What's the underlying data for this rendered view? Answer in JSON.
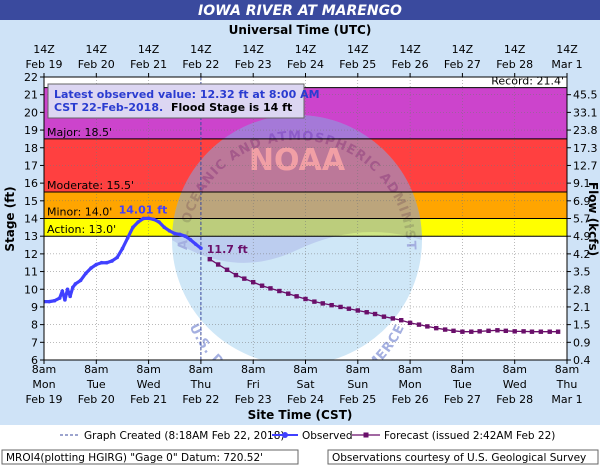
{
  "page": {
    "title": "IOWA RIVER AT MARENGO",
    "top_axis_title": "Universal Time (UTC)",
    "bottom_axis_title": "Site Time (CST)",
    "left_axis_title": "Stage (ft)",
    "right_axis_title": "Flow (kcfs)",
    "info_line1": "Latest observed value: 12.32 ft at 8:00 AM",
    "info_line2a": "CST 22-Feb-2018.",
    "info_line2b": "Flood Stage is 14 ft",
    "legend_graph_created": "Graph Created (8:18AM Feb 22, 2018)",
    "legend_observed": "Observed",
    "legend_forecast": "Forecast (issued 2:42AM Feb 22)",
    "footer_left": "MROI4(plotting HGIRG) \"Gage 0\" Datum: 720.52'",
    "footer_right": "Observations courtesy of U.S. Geological Survey",
    "watermark_top": "NATIONAL OCEANIC AND ATMOSPHERIC ADMINISTRATION",
    "watermark_bottom": "U.S. DEPARTMENT OF COMMERCE",
    "watermark_logo": "NOAA"
  },
  "chart_data": {
    "type": "line",
    "title": "IOWA RIVER AT MARENGO",
    "xlabel": "Site Time (CST)",
    "ylabel": "Stage (ft)",
    "y2label": "Flow (kcfs)",
    "top_xlabel": "Universal Time (UTC)",
    "ylim": [
      6,
      22
    ],
    "yticks": [
      6,
      7,
      8,
      9,
      10,
      11,
      12,
      13,
      14,
      15,
      16,
      17,
      18,
      19,
      20,
      21,
      22
    ],
    "x_ticks_bottom": [
      [
        "8am",
        "Mon",
        "Feb 19"
      ],
      [
        "8am",
        "Tue",
        "Feb 20"
      ],
      [
        "8am",
        "Wed",
        "Feb 21"
      ],
      [
        "8am",
        "Thu",
        "Feb 22"
      ],
      [
        "8am",
        "Fri",
        "Feb 23"
      ],
      [
        "8am",
        "Sat",
        "Feb 24"
      ],
      [
        "8am",
        "Sun",
        "Feb 25"
      ],
      [
        "8am",
        "Mon",
        "Feb 26"
      ],
      [
        "8am",
        "Tue",
        "Feb 27"
      ],
      [
        "8am",
        "Wed",
        "Feb 28"
      ],
      [
        "8am",
        "Thu",
        "Mar 1"
      ]
    ],
    "x_ticks_top": [
      [
        "14Z",
        "Feb 19"
      ],
      [
        "14Z",
        "Feb 20"
      ],
      [
        "14Z",
        "Feb 21"
      ],
      [
        "14Z",
        "Feb 22"
      ],
      [
        "14Z",
        "Feb 23"
      ],
      [
        "14Z",
        "Feb 24"
      ],
      [
        "14Z",
        "Feb 25"
      ],
      [
        "14Z",
        "Feb 26"
      ],
      [
        "14Z",
        "Feb 27"
      ],
      [
        "14Z",
        "Feb 28"
      ],
      [
        "14Z",
        "Mar 1"
      ]
    ],
    "flow_ticks": [
      {
        "stage": 6,
        "label": "0.4"
      },
      {
        "stage": 7,
        "label": "0.9"
      },
      {
        "stage": 8,
        "label": "1.5"
      },
      {
        "stage": 9,
        "label": "2.1"
      },
      {
        "stage": 10,
        "label": "2.8"
      },
      {
        "stage": 11,
        "label": "3.5"
      },
      {
        "stage": 12,
        "label": "4.2"
      },
      {
        "stage": 13,
        "label": "4.9"
      },
      {
        "stage": 14,
        "label": "5.7"
      },
      {
        "stage": 15,
        "label": "6.9"
      },
      {
        "stage": 16,
        "label": "9.1"
      },
      {
        "stage": 17,
        "label": "12.7"
      },
      {
        "stage": 18,
        "label": "17.3"
      },
      {
        "stage": 19,
        "label": "23.8"
      },
      {
        "stage": 20,
        "label": "33.1"
      },
      {
        "stage": 21,
        "label": "45.5"
      }
    ],
    "bands": [
      {
        "name": "Action",
        "label": "Action: 13.0'",
        "from": 13,
        "to": 14,
        "color": "#ffff00"
      },
      {
        "name": "Minor",
        "label": "Minor: 14.0'",
        "from": 14,
        "to": 15.5,
        "color": "#ffa500"
      },
      {
        "name": "Moderate",
        "label": "Moderate: 15.5'",
        "from": 15.5,
        "to": 18.5,
        "color": "#ff4040"
      },
      {
        "name": "Major",
        "label": "Major: 18.5'",
        "from": 18.5,
        "to": 21.4,
        "color": "#cc44cc"
      }
    ],
    "record": {
      "value": 21.4,
      "label": "Record: 21.4'"
    },
    "graph_created_x": 3.0,
    "observed": {
      "name": "Observed",
      "color": "#4040ff",
      "points": [
        [
          0.0,
          9.3
        ],
        [
          0.1,
          9.3
        ],
        [
          0.2,
          9.35
        ],
        [
          0.3,
          9.5
        ],
        [
          0.35,
          9.9
        ],
        [
          0.4,
          9.4
        ],
        [
          0.45,
          10.0
        ],
        [
          0.5,
          9.6
        ],
        [
          0.55,
          10.1
        ],
        [
          0.6,
          10.3
        ],
        [
          0.7,
          10.5
        ],
        [
          0.8,
          10.9
        ],
        [
          0.9,
          11.2
        ],
        [
          1.0,
          11.4
        ],
        [
          1.1,
          11.5
        ],
        [
          1.2,
          11.5
        ],
        [
          1.3,
          11.6
        ],
        [
          1.4,
          11.8
        ],
        [
          1.5,
          12.3
        ],
        [
          1.6,
          12.9
        ],
        [
          1.7,
          13.5
        ],
        [
          1.8,
          13.8
        ],
        [
          1.9,
          14.0
        ],
        [
          2.0,
          14.01
        ],
        [
          2.1,
          13.95
        ],
        [
          2.2,
          13.8
        ],
        [
          2.3,
          13.5
        ],
        [
          2.4,
          13.3
        ],
        [
          2.5,
          13.15
        ],
        [
          2.6,
          13.1
        ],
        [
          2.7,
          13.0
        ],
        [
          2.8,
          12.8
        ],
        [
          2.9,
          12.55
        ],
        [
          3.0,
          12.32
        ]
      ]
    },
    "forecast": {
      "name": "Forecast (issued 2:42AM Feb 22)",
      "color": "#6a0f6a",
      "points": [
        [
          3.17,
          11.7
        ],
        [
          3.33,
          11.4
        ],
        [
          3.5,
          11.1
        ],
        [
          3.67,
          10.8
        ],
        [
          3.83,
          10.6
        ],
        [
          4.0,
          10.4
        ],
        [
          4.17,
          10.2
        ],
        [
          4.33,
          10.05
        ],
        [
          4.5,
          9.9
        ],
        [
          4.67,
          9.75
        ],
        [
          4.83,
          9.6
        ],
        [
          5.0,
          9.45
        ],
        [
          5.17,
          9.3
        ],
        [
          5.33,
          9.2
        ],
        [
          5.5,
          9.1
        ],
        [
          5.67,
          9.0
        ],
        [
          5.83,
          8.9
        ],
        [
          6.0,
          8.8
        ],
        [
          6.17,
          8.7
        ],
        [
          6.33,
          8.6
        ],
        [
          6.5,
          8.45
        ],
        [
          6.67,
          8.35
        ],
        [
          6.83,
          8.25
        ],
        [
          7.0,
          8.1
        ],
        [
          7.17,
          8.0
        ],
        [
          7.33,
          7.9
        ],
        [
          7.5,
          7.8
        ],
        [
          7.67,
          7.72
        ],
        [
          7.83,
          7.65
        ],
        [
          8.0,
          7.6
        ],
        [
          8.17,
          7.6
        ],
        [
          8.33,
          7.62
        ],
        [
          8.5,
          7.65
        ],
        [
          8.67,
          7.68
        ],
        [
          8.83,
          7.65
        ],
        [
          9.0,
          7.62
        ],
        [
          9.17,
          7.62
        ],
        [
          9.33,
          7.6
        ],
        [
          9.5,
          7.6
        ],
        [
          9.67,
          7.6
        ],
        [
          9.83,
          7.6
        ]
      ]
    },
    "annotations": [
      {
        "x": 2.0,
        "y": 14.01,
        "label": "14.01 ft",
        "color": "#4040ff"
      },
      {
        "x": 3.17,
        "y": 11.7,
        "label": "11.7 ft",
        "color": "#6a0f6a"
      }
    ]
  }
}
